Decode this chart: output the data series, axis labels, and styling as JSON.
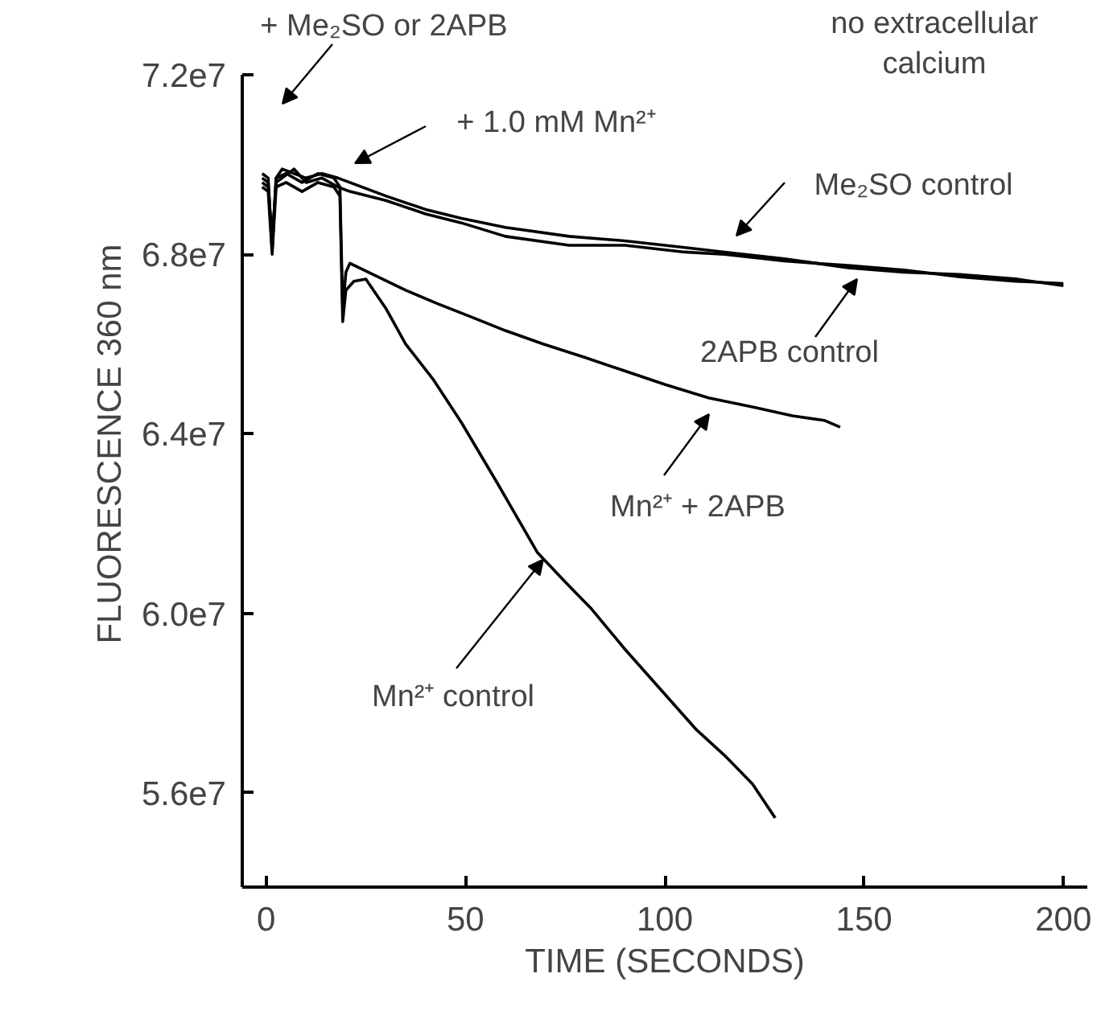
{
  "chart_data": {
    "type": "line",
    "xlabel": "TIME (SECONDS)",
    "ylabel": "FLUORESCENCE 360 nm",
    "xlim": [
      -6,
      206
    ],
    "ylim": [
      53900000,
      72000000
    ],
    "xticks": [
      0,
      50,
      100,
      150,
      200
    ],
    "yticks": [
      {
        "value": 56000000,
        "label": "5.6e7"
      },
      {
        "value": 60000000,
        "label": "6.0e7"
      },
      {
        "value": 64000000,
        "label": "6.4e7"
      },
      {
        "value": 68000000,
        "label": "6.8e7"
      },
      {
        "value": 72000000,
        "label": "7.2e7"
      }
    ],
    "grid": false,
    "series": [
      {
        "color": "#000000",
        "x": [
          -1,
          0.5,
          1.5,
          2.5,
          4,
          7,
          10,
          14,
          18,
          21,
          30,
          40,
          49,
          60,
          76,
          90,
          105,
          115,
          130,
          146,
          160,
          174,
          188,
          200
        ],
        "values": [
          69800000,
          69700000,
          68100000,
          69700000,
          69900000,
          69800000,
          69700000,
          69800000,
          69700000,
          69600000,
          69300000,
          69000000,
          68800000,
          68600000,
          68400000,
          68300000,
          68150000,
          68050000,
          67900000,
          67700000,
          67600000,
          67550000,
          67450000,
          67300000
        ]
      },
      {
        "color": "#000000",
        "x": [
          -1,
          0.5,
          1.5,
          2.5,
          4,
          7,
          10,
          14,
          18,
          21,
          30,
          40,
          49,
          60,
          76,
          90,
          105,
          115,
          130,
          146,
          160,
          174,
          188,
          200
        ],
        "values": [
          69600000,
          69500000,
          68300000,
          69600000,
          69700000,
          69900000,
          69600000,
          69700000,
          69500000,
          69400000,
          69200000,
          68900000,
          68700000,
          68400000,
          68200000,
          68200000,
          68050000,
          68000000,
          67850000,
          67750000,
          67650000,
          67500000,
          67400000,
          67350000
        ]
      },
      {
        "color": "#000000",
        "x": [
          -1,
          0.5,
          1.5,
          2.5,
          5,
          9,
          13,
          17,
          18.5,
          19.2,
          20,
          21,
          28,
          35,
          43,
          51.6,
          60,
          69.5,
          80,
          90,
          100,
          111,
          122,
          132,
          140,
          144
        ],
        "values": [
          69700000,
          69600000,
          68200000,
          69700000,
          69800000,
          69600000,
          69800000,
          69700000,
          69500000,
          66800000,
          67600000,
          67800000,
          67500000,
          67200000,
          66900000,
          66600000,
          66300000,
          66000000,
          65700000,
          65400000,
          65100000,
          64800000,
          64600000,
          64400000,
          64300000,
          64150000
        ]
      },
      {
        "color": "#000000",
        "x": [
          -1,
          0.5,
          1.5,
          2.5,
          5,
          9,
          13,
          17,
          18.5,
          19.2,
          20,
          22,
          25,
          30,
          35,
          42,
          49,
          58,
          68,
          75,
          81.6,
          90,
          102,
          108,
          115.4,
          122,
          127.7
        ],
        "values": [
          69500000,
          69400000,
          68000000,
          69500000,
          69600000,
          69400000,
          69600000,
          69500000,
          69300000,
          66500000,
          67200000,
          67400000,
          67450000,
          66800000,
          66000000,
          65200000,
          64250000,
          62900000,
          61360000,
          60700000,
          60100000,
          59200000,
          58000000,
          57400000,
          56800000,
          56200000,
          55440000
        ]
      }
    ],
    "annotations": [
      "+ Me₂SO or 2APB",
      "+ 1.0 mM Mn²⁺",
      "Me₂SO control",
      "2APB control",
      "Mn²⁺ + 2APB",
      {
        "text": "Mn²⁺ control",
        "x": 69.5,
        "y": 61200000
      },
      "no extracellular\ncalcium"
    ]
  }
}
